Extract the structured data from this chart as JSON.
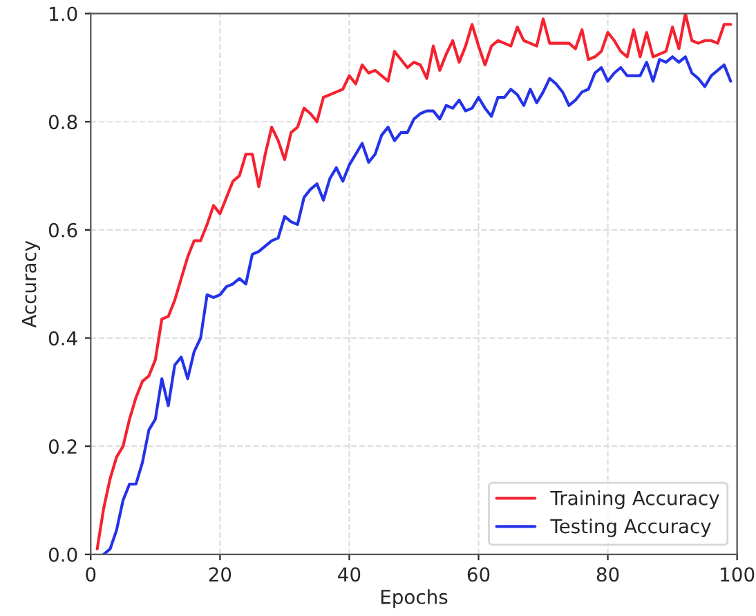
{
  "chart_data": {
    "type": "line",
    "xlabel": "Epochs",
    "ylabel": "Accuracy",
    "xlim": [
      0,
      100
    ],
    "xticks": [
      0,
      20,
      40,
      60,
      80,
      100
    ],
    "ylim": [
      0.0,
      1.0
    ],
    "yticks": [
      {
        "value": 0,
        "label": "0.0"
      },
      {
        "value": 0.2,
        "label": "0.2"
      },
      {
        "value": 0.4,
        "label": "0.4"
      },
      {
        "value": 0.6,
        "label": "0.6"
      },
      {
        "value": 0.8,
        "label": "0.8"
      },
      {
        "value": 1.0,
        "label": "1.0"
      }
    ],
    "grid": true,
    "legend": "bottom right",
    "line_style": "solid",
    "marker": "none",
    "series": [
      {
        "name": "Training Accuracy",
        "color": "#f5222f",
        "x": [
          1,
          2,
          3,
          4,
          5,
          6,
          7,
          8,
          9,
          10,
          11,
          12,
          13,
          14,
          15,
          16,
          17,
          18,
          19,
          20,
          21,
          22,
          23,
          24,
          25,
          26,
          27,
          28,
          29,
          30,
          31,
          32,
          33,
          34,
          35,
          36,
          37,
          38,
          39,
          40,
          41,
          42,
          43,
          44,
          45,
          46,
          47,
          48,
          49,
          50,
          51,
          52,
          53,
          54,
          55,
          56,
          57,
          58,
          59,
          60,
          61,
          62,
          63,
          64,
          65,
          66,
          67,
          68,
          69,
          70,
          71,
          72,
          73,
          74,
          75,
          76,
          77,
          78,
          79,
          80,
          81,
          82,
          83,
          84,
          85,
          86,
          87,
          88,
          89,
          90,
          91,
          92,
          93,
          94,
          95,
          96,
          97,
          98,
          99
        ],
        "values": [
          0.01,
          0.085,
          0.14,
          0.18,
          0.2,
          0.25,
          0.29,
          0.32,
          0.33,
          0.36,
          0.435,
          0.44,
          0.47,
          0.51,
          0.55,
          0.58,
          0.58,
          0.61,
          0.645,
          0.63,
          0.66,
          0.69,
          0.7,
          0.74,
          0.74,
          0.68,
          0.74,
          0.79,
          0.765,
          0.73,
          0.78,
          0.79,
          0.825,
          0.815,
          0.8,
          0.845,
          0.85,
          0.855,
          0.86,
          0.885,
          0.87,
          0.905,
          0.89,
          0.895,
          0.885,
          0.875,
          0.93,
          0.915,
          0.9,
          0.91,
          0.905,
          0.88,
          0.94,
          0.895,
          0.925,
          0.95,
          0.91,
          0.94,
          0.98,
          0.94,
          0.905,
          0.94,
          0.95,
          0.945,
          0.94,
          0.975,
          0.95,
          0.945,
          0.94,
          0.99,
          0.945,
          0.945,
          0.945,
          0.945,
          0.935,
          0.97,
          0.915,
          0.92,
          0.93,
          0.965,
          0.95,
          0.93,
          0.92,
          0.97,
          0.92,
          0.965,
          0.92,
          0.925,
          0.93,
          0.975,
          0.935,
          1.0,
          0.95,
          0.945,
          0.95,
          0.95,
          0.945,
          0.98,
          0.98
        ]
      },
      {
        "name": "Testing Accuracy",
        "color": "#2433e8",
        "x": [
          2,
          3,
          4,
          5,
          6,
          7,
          8,
          9,
          10,
          11,
          12,
          13,
          14,
          15,
          16,
          17,
          18,
          19,
          20,
          21,
          22,
          23,
          24,
          25,
          26,
          27,
          28,
          29,
          30,
          31,
          32,
          33,
          34,
          35,
          36,
          37,
          38,
          39,
          40,
          41,
          42,
          43,
          44,
          45,
          46,
          47,
          48,
          49,
          50,
          51,
          52,
          53,
          54,
          55,
          56,
          57,
          58,
          59,
          60,
          61,
          62,
          63,
          64,
          65,
          66,
          67,
          68,
          69,
          70,
          71,
          72,
          73,
          74,
          75,
          76,
          77,
          78,
          79,
          80,
          81,
          82,
          83,
          84,
          85,
          86,
          87,
          88,
          89,
          90,
          91,
          92,
          93,
          94,
          95,
          96,
          97,
          98,
          99
        ],
        "values": [
          0.0,
          0.01,
          0.045,
          0.1,
          0.13,
          0.13,
          0.17,
          0.23,
          0.25,
          0.325,
          0.275,
          0.35,
          0.365,
          0.325,
          0.375,
          0.4,
          0.48,
          0.475,
          0.48,
          0.495,
          0.5,
          0.51,
          0.5,
          0.555,
          0.56,
          0.57,
          0.58,
          0.585,
          0.625,
          0.615,
          0.61,
          0.66,
          0.675,
          0.685,
          0.655,
          0.695,
          0.715,
          0.69,
          0.72,
          0.74,
          0.76,
          0.725,
          0.74,
          0.775,
          0.79,
          0.765,
          0.78,
          0.78,
          0.805,
          0.815,
          0.82,
          0.82,
          0.805,
          0.83,
          0.825,
          0.84,
          0.82,
          0.825,
          0.845,
          0.825,
          0.81,
          0.845,
          0.845,
          0.86,
          0.85,
          0.83,
          0.86,
          0.835,
          0.855,
          0.88,
          0.87,
          0.855,
          0.83,
          0.84,
          0.855,
          0.86,
          0.89,
          0.9,
          0.875,
          0.89,
          0.9,
          0.885,
          0.885,
          0.885,
          0.91,
          0.875,
          0.915,
          0.91,
          0.92,
          0.91,
          0.92,
          0.89,
          0.88,
          0.865,
          0.885,
          0.895,
          0.905,
          0.875
        ]
      }
    ]
  }
}
